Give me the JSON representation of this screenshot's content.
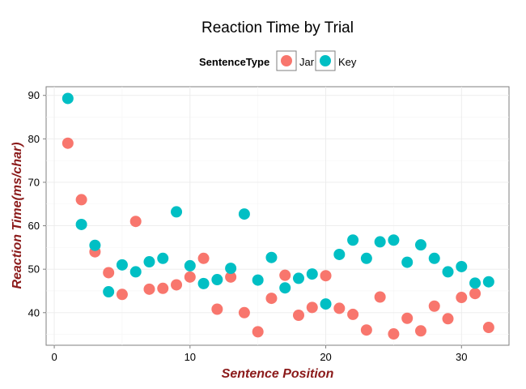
{
  "chart_data": {
    "type": "scatter",
    "title": "Reaction Time by Trial",
    "xlabel": "Sentence Position",
    "ylabel": "Reaction Time(ms/char)",
    "xlim": [
      -0.6,
      33.5
    ],
    "ylim": [
      32.5,
      92.0
    ],
    "x_ticks": [
      0,
      10,
      20,
      30
    ],
    "y_ticks": [
      40,
      50,
      60,
      70,
      80,
      90
    ],
    "grid": true,
    "legend": {
      "title": "SentenceType",
      "position": "top"
    },
    "axis_label_color": "#8b1a1a",
    "series": [
      {
        "name": "Jar",
        "color": "#f8766d",
        "x": [
          1,
          2,
          3,
          4,
          5,
          6,
          7,
          8,
          9,
          10,
          11,
          12,
          13,
          14,
          15,
          16,
          17,
          18,
          19,
          20,
          21,
          22,
          23,
          24,
          25,
          26,
          27,
          28,
          29,
          30,
          31,
          32
        ],
        "y": [
          79.0,
          66.0,
          54.0,
          49.2,
          44.2,
          61.0,
          45.4,
          45.6,
          46.4,
          48.2,
          52.5,
          40.8,
          48.2,
          40.0,
          35.6,
          43.3,
          48.6,
          39.4,
          41.2,
          48.5,
          41.0,
          39.6,
          36.0,
          43.6,
          35.1,
          38.7,
          35.8,
          41.5,
          38.6,
          43.5,
          44.4,
          36.6
        ]
      },
      {
        "name": "Key",
        "color": "#00bfc4",
        "x": [
          1,
          2,
          3,
          4,
          5,
          6,
          7,
          8,
          9,
          10,
          11,
          12,
          13,
          14,
          15,
          16,
          17,
          18,
          19,
          20,
          21,
          22,
          23,
          24,
          25,
          26,
          27,
          28,
          29,
          30,
          31,
          32
        ],
        "y": [
          89.3,
          60.3,
          55.5,
          44.8,
          51.0,
          49.4,
          51.7,
          52.5,
          63.2,
          50.8,
          46.7,
          47.6,
          50.2,
          62.7,
          47.5,
          52.7,
          45.7,
          47.9,
          48.9,
          42.0,
          53.4,
          56.7,
          52.5,
          56.3,
          56.7,
          51.6,
          55.6,
          52.5,
          49.4,
          50.6,
          46.8,
          47.1
        ]
      }
    ]
  }
}
